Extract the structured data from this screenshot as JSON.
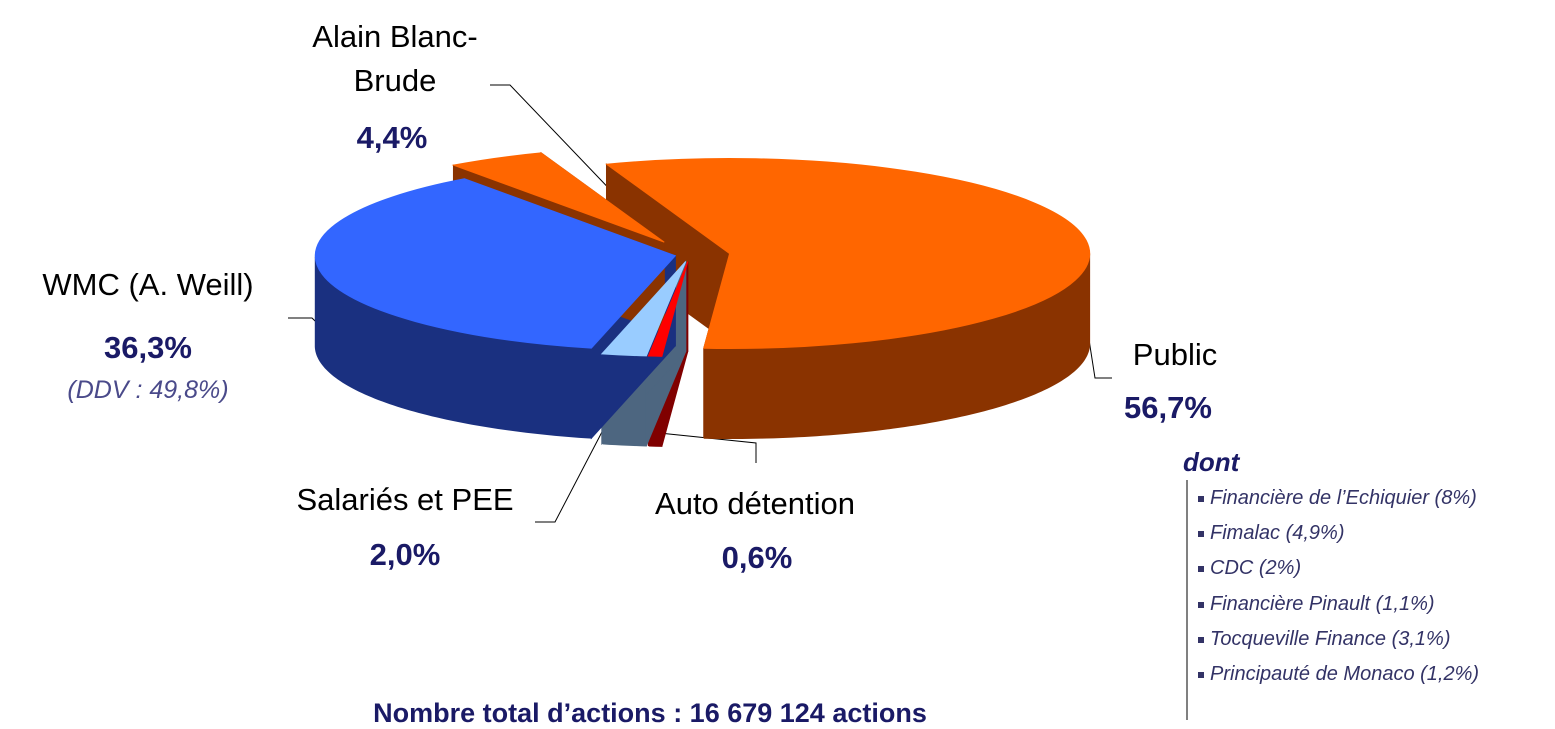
{
  "chart_data": {
    "type": "pie",
    "categories": [
      "Public",
      "Auto détention",
      "Salariés et PEE",
      "WMC (A. Weill)",
      "Alain Blanc-Brude"
    ],
    "values": [
      56.7,
      0.6,
      2.0,
      36.3,
      4.4
    ],
    "value_labels": [
      "56,7%",
      "0,6%",
      "2,0%",
      "36,3%",
      "4,4%"
    ],
    "colors": [
      "#ff6600",
      "#ff0000",
      "#99ccff",
      "#3366ff",
      "#ff6600"
    ],
    "side_colors": [
      "#8a3300",
      "#800000",
      "#4d6680",
      "#1a3080",
      "#8a3300"
    ],
    "annotation": "(DDV : 49,8%)",
    "breakdown": {
      "title": "dont",
      "items": [
        "Financière de l’Echiquier (8%)",
        "Fimalac (4,9%)",
        "CDC (2%)",
        "Financière Pinault (1,1%)",
        "Tocqueville Finance (3,1%)",
        "Principauté de Monaco (1,2%)"
      ]
    },
    "footnote": "Nombre total d’actions : 16 679 124 actions"
  }
}
